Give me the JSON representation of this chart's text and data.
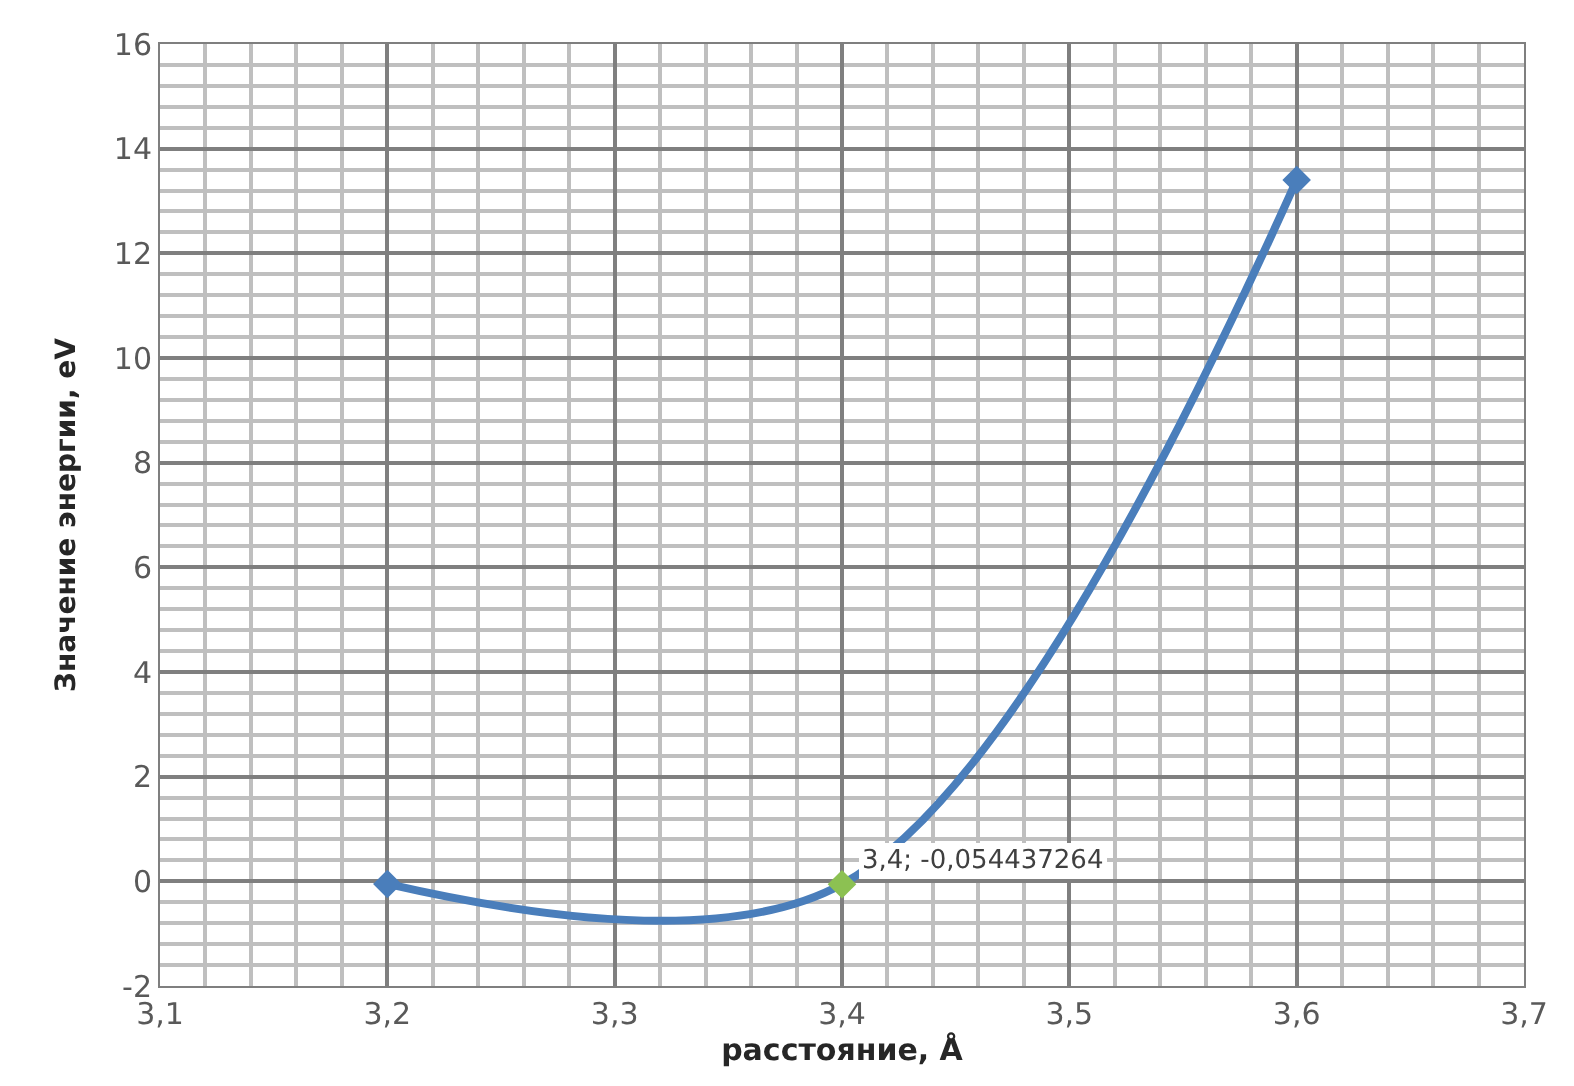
{
  "chart_data": {
    "type": "line",
    "xlabel": "расстояние, Å",
    "ylabel": "Значение энергии, eV",
    "x": [
      3.2,
      3.4,
      3.6
    ],
    "series": [
      {
        "color": "#4a7ebb",
        "colors": [
          "#4a7ebb",
          "#8cc152",
          "#4a7ebb"
        ],
        "values": [
          -0.05,
          -0.054437264,
          13.4
        ]
      }
    ],
    "annotations": [
      {
        "text": "3,4; -0,054437264",
        "x": 3.4,
        "y": -0.054437264
      }
    ],
    "xlim": [
      3.1,
      3.7
    ],
    "ylim": [
      -2,
      16
    ],
    "xticks": [
      {
        "value": 3.1,
        "label": "3,1"
      },
      {
        "value": 3.2,
        "label": "3,2"
      },
      {
        "value": 3.3,
        "label": "3,3"
      },
      {
        "value": 3.4,
        "label": "3,4"
      },
      {
        "value": 3.5,
        "label": "3,5"
      },
      {
        "value": 3.6,
        "label": "3,6"
      },
      {
        "value": 3.7,
        "label": "3,7"
      }
    ],
    "yticks": [
      -2,
      0,
      2,
      4,
      6,
      8,
      10,
      12,
      14,
      16
    ],
    "grid": true,
    "marker": "diamond",
    "line_style": "solid"
  }
}
